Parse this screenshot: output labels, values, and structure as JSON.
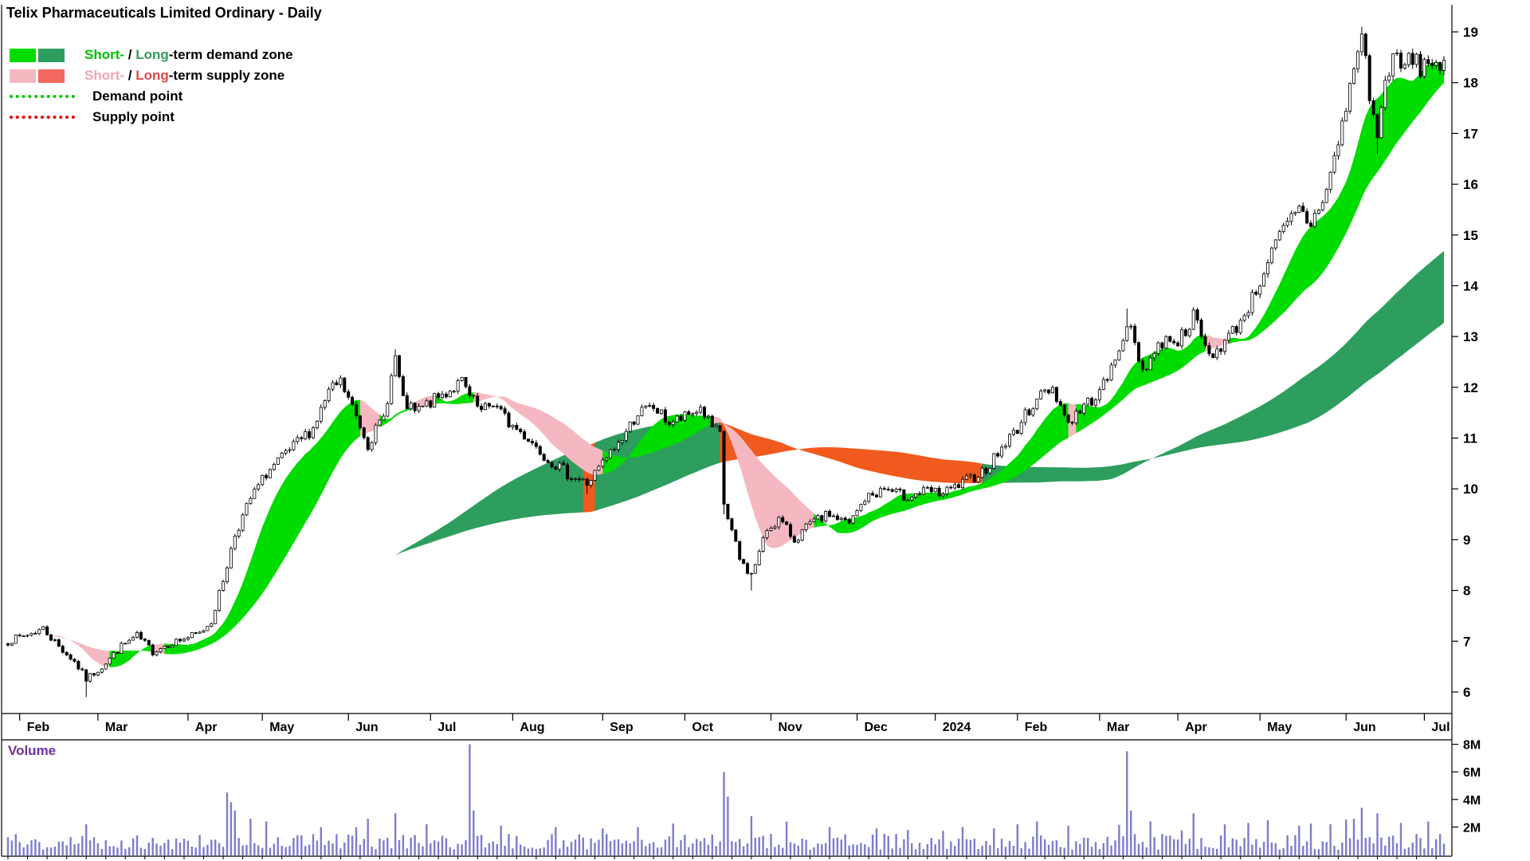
{
  "header": {
    "title": "Telix Pharmaceuticals Limited Ordinary - Daily"
  },
  "legend": {
    "demand_zone": {
      "short": "Short-",
      "sep": " / ",
      "long": "Long",
      "suffix": "-term demand zone",
      "short_color": "#00dc00",
      "long_color": "#2e9e5e",
      "short_text_color": "#00c000",
      "long_text_color": "#2e9e5e"
    },
    "supply_zone": {
      "short": "Short-",
      "sep": " / ",
      "long": "Long",
      "suffix": "-term supply zone",
      "short_color": "#f5b8c1",
      "long_color": "#f4695f",
      "short_text_color": "#f0a4b2",
      "long_text_color": "#e04848"
    },
    "demand_point": {
      "label": "Demand point",
      "color": "#00c800"
    },
    "supply_point": {
      "label": "Supply point",
      "color": "#e60000"
    }
  },
  "volume_panel": {
    "label": "Volume",
    "label_color": "#7030a0",
    "axis_ticks": [
      "2M",
      "4M",
      "6M",
      "8M"
    ]
  },
  "chart_data": {
    "type": "candlestick",
    "title": "Telix Pharmaceuticals Limited Ordinary - Daily",
    "timeframe": "Daily",
    "x_ticks": [
      "Feb",
      "Mar",
      "Apr",
      "May",
      "Jun",
      "Jul",
      "Aug",
      "Sep",
      "Oct",
      "Nov",
      "Dec",
      "2024",
      "Feb",
      "Mar",
      "Apr",
      "May",
      "Jun",
      "Jul"
    ],
    "month_start_indices": [
      3,
      23,
      46,
      65,
      87,
      108,
      129,
      152,
      173,
      195,
      217,
      237,
      258,
      279,
      299,
      320,
      342,
      362
    ],
    "total_days": 368,
    "seed": 7,
    "y_axis": {
      "side": "right",
      "min": 5.6,
      "max": 19.5,
      "ticks": [
        6,
        7,
        8,
        9,
        10,
        11,
        12,
        13,
        14,
        15,
        16,
        17,
        18,
        19
      ]
    },
    "volume_axis": {
      "ticks_m": [
        2,
        4,
        6,
        8
      ],
      "max_m": 8.3
    },
    "price_keyframes": [
      [
        0,
        7.0
      ],
      [
        4,
        7.1
      ],
      [
        9,
        7.25
      ],
      [
        13,
        6.9
      ],
      [
        17,
        6.6
      ],
      [
        20,
        6.25
      ],
      [
        24,
        6.5
      ],
      [
        29,
        6.9
      ],
      [
        33,
        7.1
      ],
      [
        37,
        6.8
      ],
      [
        41,
        6.95
      ],
      [
        45,
        7.05
      ],
      [
        49,
        7.15
      ],
      [
        52,
        7.4
      ],
      [
        55,
        8.2
      ],
      [
        58,
        9.1
      ],
      [
        62,
        9.8
      ],
      [
        66,
        10.3
      ],
      [
        70,
        10.6
      ],
      [
        74,
        10.9
      ],
      [
        78,
        11.2
      ],
      [
        82,
        11.9
      ],
      [
        85,
        12.1
      ],
      [
        88,
        11.6
      ],
      [
        92,
        10.9
      ],
      [
        96,
        11.4
      ],
      [
        99,
        12.6
      ],
      [
        101,
        11.7
      ],
      [
        104,
        11.5
      ],
      [
        108,
        11.7
      ],
      [
        112,
        11.9
      ],
      [
        116,
        12.1
      ],
      [
        118,
        11.8
      ],
      [
        121,
        11.5
      ],
      [
        124,
        11.7
      ],
      [
        128,
        11.3
      ],
      [
        133,
        11.0
      ],
      [
        138,
        10.6
      ],
      [
        143,
        10.3
      ],
      [
        148,
        10.1
      ],
      [
        152,
        10.5
      ],
      [
        157,
        11.0
      ],
      [
        161,
        11.5
      ],
      [
        165,
        11.6
      ],
      [
        169,
        11.3
      ],
      [
        173,
        11.4
      ],
      [
        177,
        11.6
      ],
      [
        180,
        11.2
      ],
      [
        182,
        11.05
      ],
      [
        183,
        9.7
      ],
      [
        187,
        8.6
      ],
      [
        190,
        8.3
      ],
      [
        194,
        9.2
      ],
      [
        197,
        9.4
      ],
      [
        201,
        9.0
      ],
      [
        205,
        9.3
      ],
      [
        210,
        9.5
      ],
      [
        215,
        9.3
      ],
      [
        219,
        9.8
      ],
      [
        224,
        10.0
      ],
      [
        229,
        9.85
      ],
      [
        235,
        9.95
      ],
      [
        239,
        9.9
      ],
      [
        244,
        10.1
      ],
      [
        250,
        10.4
      ],
      [
        255,
        10.9
      ],
      [
        258,
        11.2
      ],
      [
        263,
        11.8
      ],
      [
        267,
        12.0
      ],
      [
        271,
        11.3
      ],
      [
        276,
        11.7
      ],
      [
        279,
        11.9
      ],
      [
        283,
        12.5
      ],
      [
        286,
        13.3
      ],
      [
        290,
        12.35
      ],
      [
        294,
        12.8
      ],
      [
        297,
        13.0
      ],
      [
        299,
        12.9
      ],
      [
        303,
        13.4
      ],
      [
        307,
        12.6
      ],
      [
        311,
        12.9
      ],
      [
        315,
        13.3
      ],
      [
        319,
        13.9
      ],
      [
        322,
        14.5
      ],
      [
        326,
        15.1
      ],
      [
        330,
        15.5
      ],
      [
        333,
        15.2
      ],
      [
        337,
        15.9
      ],
      [
        340,
        16.8
      ],
      [
        343,
        17.9
      ],
      [
        346,
        19.0
      ],
      [
        348,
        17.8
      ],
      [
        350,
        16.9
      ],
      [
        352,
        18.0
      ],
      [
        354,
        18.6
      ],
      [
        356,
        18.2
      ],
      [
        358,
        18.5
      ],
      [
        361,
        18.3
      ],
      [
        364,
        18.45
      ],
      [
        367,
        18.3
      ]
    ],
    "wick_overrides": [
      [
        20,
        "l",
        5.9
      ],
      [
        99,
        "h",
        12.75
      ],
      [
        148,
        "l",
        9.9
      ],
      [
        183,
        "l",
        9.5
      ],
      [
        190,
        "l",
        8.0
      ],
      [
        286,
        "h",
        13.55
      ],
      [
        346,
        "h",
        19.1
      ],
      [
        350,
        "l",
        16.6
      ]
    ],
    "volume_spikes_m": [
      [
        20,
        2.2
      ],
      [
        56,
        4.5
      ],
      [
        57,
        3.8
      ],
      [
        58,
        3.2
      ],
      [
        62,
        2.6
      ],
      [
        66,
        2.4
      ],
      [
        80,
        2.0
      ],
      [
        92,
        2.6
      ],
      [
        99,
        3.0
      ],
      [
        107,
        2.2
      ],
      [
        118,
        8.0
      ],
      [
        119,
        3.2
      ],
      [
        126,
        2.1
      ],
      [
        140,
        2.0
      ],
      [
        152,
        1.9
      ],
      [
        161,
        2.0
      ],
      [
        183,
        6.0
      ],
      [
        184,
        4.2
      ],
      [
        190,
        2.8
      ],
      [
        199,
        2.4
      ],
      [
        210,
        2.0
      ],
      [
        222,
        1.9
      ],
      [
        230,
        1.8
      ],
      [
        244,
        2.0
      ],
      [
        252,
        1.9
      ],
      [
        258,
        2.2
      ],
      [
        263,
        2.4
      ],
      [
        271,
        2.1
      ],
      [
        286,
        7.5
      ],
      [
        287,
        3.2
      ],
      [
        292,
        2.4
      ],
      [
        303,
        3.0
      ],
      [
        311,
        2.2
      ],
      [
        317,
        2.3
      ],
      [
        322,
        2.5
      ],
      [
        330,
        2.1
      ],
      [
        338,
        2.2
      ],
      [
        344,
        2.6
      ],
      [
        346,
        3.4
      ],
      [
        350,
        3.0
      ],
      [
        356,
        2.3
      ],
      [
        363,
        2.4
      ]
    ],
    "volume_baseline_m": [
      0.35,
      1.5
    ],
    "bands": {
      "short": {
        "fast_ma": 12,
        "slow_ma": 30
      },
      "long": {
        "fast_ma": 100,
        "slow_ma": 150
      }
    },
    "colors": {
      "short_demand": "#00dc00",
      "short_supply": "#f5b8c1",
      "long_demand": "#2e9e5e",
      "long_supply": "#f05a1e",
      "candle_up": "#ffffff",
      "candle_down": "#000000",
      "candle_stroke": "#000000",
      "volume_bar": "#7d7dcb",
      "axis_text": "#000000",
      "axis_line": "#000000"
    }
  }
}
